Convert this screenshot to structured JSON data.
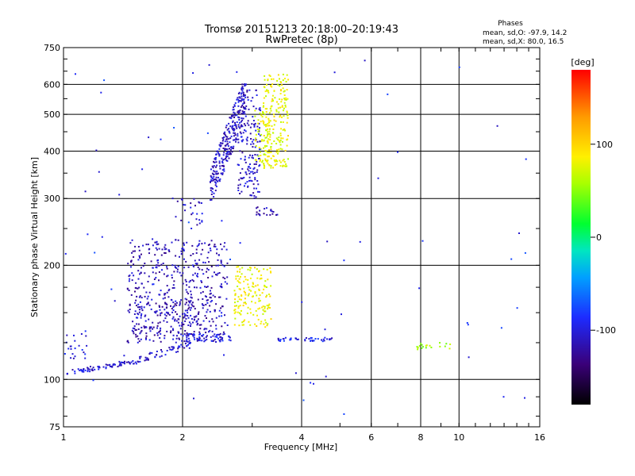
{
  "chart_data": {
    "type": "scatter",
    "title": "Tromsø 20151213 20:18:00–20:19:43",
    "subtitle": "RwPretec (8p)",
    "xlabel": "Frequency [MHz]",
    "ylabel": "Stationary phase Virtual Height [km]",
    "x_scale": "log",
    "y_scale": "log",
    "xlim": [
      1,
      16
    ],
    "ylim": [
      75,
      750
    ],
    "x_ticks": [
      1,
      2,
      4,
      6,
      8,
      10,
      16
    ],
    "x_tick_labels": [
      "1",
      "2",
      "4",
      "6",
      "8",
      "10",
      "16"
    ],
    "y_ticks": [
      75,
      100,
      200,
      300,
      400,
      500,
      600,
      750
    ],
    "y_tick_labels": [
      "75",
      "100",
      "200",
      "300",
      "400",
      "500",
      "600",
      "750"
    ],
    "grid": true,
    "phases": {
      "title": "Phases",
      "line_o": "mean, sd,O: -97.9, 14.2",
      "line_x": "mean, sd,X: 80.0, 16.5"
    },
    "colorbar": {
      "label": "[deg]",
      "range": [
        -180,
        180
      ],
      "ticks": [
        100,
        0,
        -100
      ],
      "tick_labels": [
        "100",
        "0",
        "-100"
      ]
    },
    "series": [
      {
        "clusters": [
          {
            "xmin": 1.02,
            "xmax": 1.5,
            "ymin": 103,
            "ymax": 112,
            "phase": -105,
            "n": 70,
            "trend": 1
          },
          {
            "xmin": 1.5,
            "xmax": 2.1,
            "ymin": 110,
            "ymax": 125,
            "phase": -105,
            "n": 60,
            "trend": 1
          },
          {
            "xmin": 1.0,
            "xmax": 1.15,
            "ymin": 112,
            "ymax": 135,
            "phase": -100,
            "n": 25
          },
          {
            "xmin": 1.45,
            "xmax": 2.6,
            "ymin": 125,
            "ymax": 235,
            "phase": -112,
            "n": 480
          },
          {
            "xmin": 1.5,
            "xmax": 2.3,
            "ymin": 130,
            "ymax": 160,
            "phase": -115,
            "n": 120
          },
          {
            "xmin": 2.0,
            "xmax": 2.65,
            "ymin": 126,
            "ymax": 132,
            "phase": -100,
            "n": 50,
            "trend": 0
          },
          {
            "xmin": 1.9,
            "xmax": 2.25,
            "ymin": 250,
            "ymax": 300,
            "phase": -110,
            "n": 25
          },
          {
            "xmin": 2.35,
            "xmax": 2.9,
            "ymin": 290,
            "ymax": 600,
            "phase": -110,
            "n": 280,
            "trend": 1
          },
          {
            "xmin": 2.75,
            "xmax": 3.15,
            "ymin": 300,
            "ymax": 580,
            "phase": -108,
            "n": 160
          },
          {
            "xmin": 3.05,
            "xmax": 3.5,
            "ymin": 270,
            "ymax": 285,
            "phase": -115,
            "n": 20
          },
          {
            "xmin": 3.2,
            "xmax": 3.7,
            "ymin": 360,
            "ymax": 640,
            "phase": 80,
            "n": 210
          },
          {
            "xmin": 3.05,
            "xmax": 3.3,
            "ymin": 370,
            "ymax": 520,
            "phase": 75,
            "n": 60
          },
          {
            "xmin": 2.7,
            "xmax": 3.35,
            "ymin": 137,
            "ymax": 200,
            "phase": 82,
            "n": 160
          },
          {
            "xmin": 3.45,
            "xmax": 4.8,
            "ymin": 126,
            "ymax": 129,
            "phase": -95,
            "n": 45,
            "trend": 0
          },
          {
            "xmin": 7.8,
            "xmax": 9.5,
            "ymin": 120,
            "ymax": 125,
            "phase": 55,
            "n": 20
          },
          {
            "xmin": 1.0,
            "xmax": 15.5,
            "ymin": 80,
            "ymax": 700,
            "phase": -90,
            "n": 70
          }
        ]
      }
    ]
  }
}
